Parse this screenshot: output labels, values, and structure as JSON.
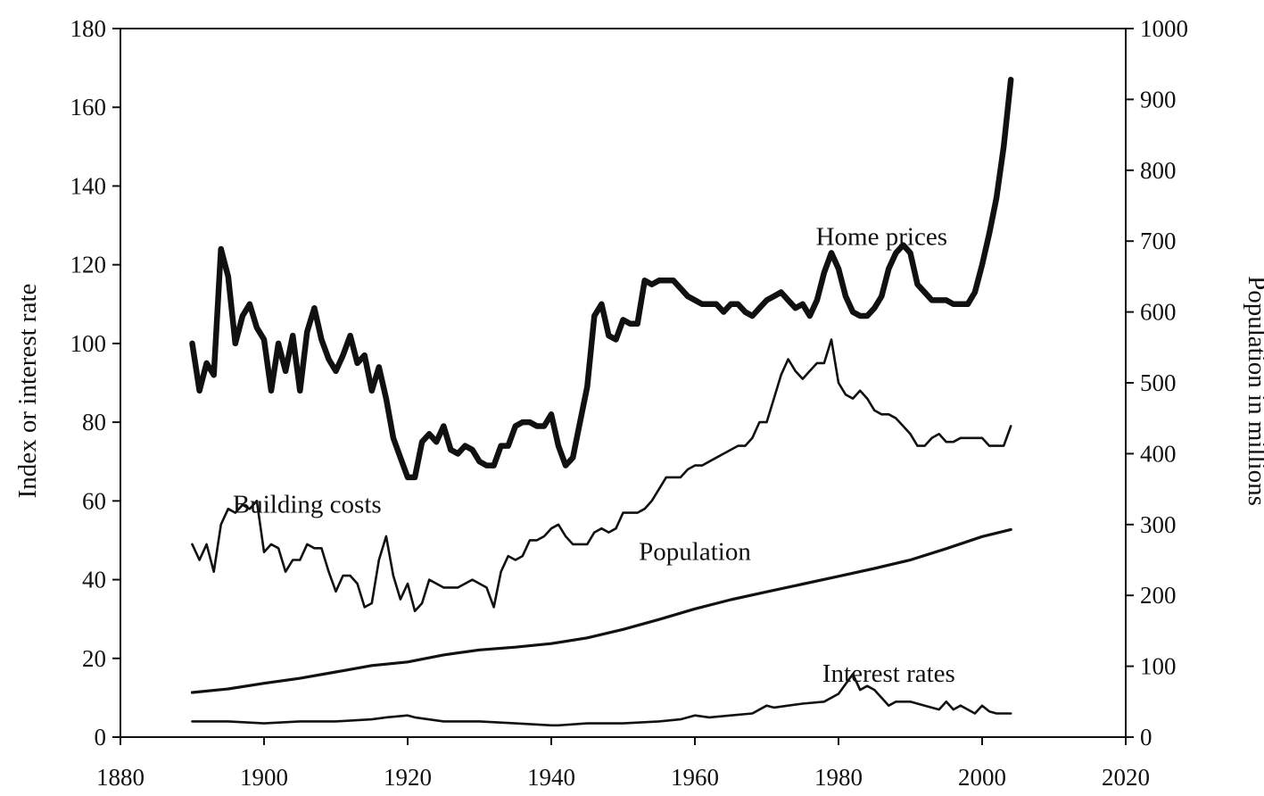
{
  "chart_data": {
    "type": "line",
    "title": "",
    "xlabel": "",
    "ylabel": "Index or interest rate",
    "y2label": "Population in millions",
    "xlim": [
      1880,
      2020
    ],
    "ylim": [
      0,
      180
    ],
    "y2lim": [
      0,
      1000
    ],
    "x_ticks": [
      1880,
      1900,
      1920,
      1940,
      1960,
      1980,
      2000,
      2020
    ],
    "y_ticks": [
      0,
      20,
      40,
      60,
      80,
      100,
      120,
      140,
      160,
      180
    ],
    "y2_ticks": [
      0,
      100,
      200,
      300,
      400,
      500,
      600,
      700,
      800,
      900,
      1000
    ],
    "grid": false,
    "legend": "none",
    "annotations": [
      {
        "text": "Home prices",
        "x": 1986,
        "y": 125
      },
      {
        "text": "Building costs",
        "x": 1906,
        "y": 57
      },
      {
        "text": "Population",
        "x": 1960,
        "y": 45
      },
      {
        "text": "Interest rates",
        "x": 1987,
        "y": 14
      }
    ],
    "series": [
      {
        "name": "Home prices",
        "axis": "left",
        "x": [
          1890,
          1891,
          1892,
          1893,
          1894,
          1895,
          1896,
          1897,
          1898,
          1899,
          1900,
          1901,
          1902,
          1903,
          1904,
          1905,
          1906,
          1907,
          1908,
          1909,
          1910,
          1911,
          1912,
          1913,
          1914,
          1915,
          1916,
          1917,
          1918,
          1919,
          1920,
          1921,
          1922,
          1923,
          1924,
          1925,
          1926,
          1927,
          1928,
          1929,
          1930,
          1931,
          1932,
          1933,
          1934,
          1935,
          1936,
          1937,
          1938,
          1939,
          1940,
          1941,
          1942,
          1943,
          1944,
          1945,
          1946,
          1947,
          1948,
          1949,
          1950,
          1951,
          1952,
          1953,
          1954,
          1955,
          1956,
          1957,
          1958,
          1959,
          1960,
          1961,
          1962,
          1963,
          1964,
          1965,
          1966,
          1967,
          1968,
          1969,
          1970,
          1971,
          1972,
          1973,
          1974,
          1975,
          1976,
          1977,
          1978,
          1979,
          1980,
          1981,
          1982,
          1983,
          1984,
          1985,
          1986,
          1987,
          1988,
          1989,
          1990,
          1991,
          1992,
          1993,
          1994,
          1995,
          1996,
          1997,
          1998,
          1999,
          2000,
          2001,
          2002,
          2003,
          2004
        ],
        "values": [
          100,
          88,
          95,
          92,
          124,
          117,
          100,
          107,
          110,
          104,
          101,
          88,
          100,
          93,
          102,
          88,
          103,
          109,
          101,
          96,
          93,
          97,
          102,
          95,
          97,
          88,
          94,
          86,
          76,
          71,
          66,
          66,
          75,
          77,
          75,
          79,
          73,
          72,
          74,
          73,
          70,
          69,
          69,
          74,
          74,
          79,
          80,
          80,
          79,
          79,
          82,
          74,
          69,
          71,
          80,
          89,
          107,
          110,
          102,
          101,
          106,
          105,
          105,
          116,
          115,
          116,
          116,
          116,
          114,
          112,
          111,
          110,
          110,
          110,
          108,
          110,
          110,
          108,
          107,
          109,
          111,
          112,
          113,
          111,
          109,
          110,
          107,
          111,
          118,
          123,
          119,
          112,
          108,
          107,
          107,
          109,
          112,
          119,
          123,
          125,
          123,
          115,
          113,
          111,
          111,
          111,
          110,
          110,
          110,
          113,
          120,
          128,
          137,
          150,
          167
        ]
      },
      {
        "name": "Building costs",
        "axis": "left",
        "x": [
          1890,
          1891,
          1892,
          1893,
          1894,
          1895,
          1896,
          1897,
          1898,
          1899,
          1900,
          1901,
          1902,
          1903,
          1904,
          1905,
          1906,
          1907,
          1908,
          1909,
          1910,
          1911,
          1912,
          1913,
          1914,
          1915,
          1916,
          1917,
          1918,
          1919,
          1920,
          1921,
          1922,
          1923,
          1924,
          1925,
          1926,
          1927,
          1928,
          1929,
          1930,
          1931,
          1932,
          1933,
          1934,
          1935,
          1936,
          1937,
          1938,
          1939,
          1940,
          1941,
          1942,
          1943,
          1944,
          1945,
          1946,
          1947,
          1948,
          1949,
          1950,
          1951,
          1952,
          1953,
          1954,
          1955,
          1956,
          1957,
          1958,
          1959,
          1960,
          1961,
          1962,
          1963,
          1964,
          1965,
          1966,
          1967,
          1968,
          1969,
          1970,
          1971,
          1972,
          1973,
          1974,
          1975,
          1976,
          1977,
          1978,
          1979,
          1980,
          1981,
          1982,
          1983,
          1984,
          1985,
          1986,
          1987,
          1988,
          1989,
          1990,
          1991,
          1992,
          1993,
          1994,
          1995,
          1996,
          1997,
          1998,
          1999,
          2000,
          2001,
          2002,
          2003,
          2004
        ],
        "values": [
          49,
          45,
          49,
          42,
          54,
          58,
          57,
          59,
          58,
          60,
          47,
          49,
          48,
          42,
          45,
          45,
          49,
          48,
          48,
          42,
          37,
          41,
          41,
          39,
          33,
          34,
          45,
          51,
          41,
          35,
          39,
          32,
          34,
          40,
          39,
          38,
          38,
          38,
          39,
          40,
          39,
          38,
          33,
          42,
          46,
          45,
          46,
          50,
          50,
          51,
          53,
          54,
          51,
          49,
          49,
          49,
          52,
          53,
          52,
          53,
          57,
          57,
          57,
          58,
          60,
          63,
          66,
          66,
          66,
          68,
          69,
          69,
          70,
          71,
          72,
          73,
          74,
          74,
          76,
          80,
          80,
          86,
          92,
          96,
          93,
          91,
          93,
          95,
          95,
          101,
          90,
          87,
          86,
          88,
          86,
          83,
          82,
          82,
          81,
          79,
          77,
          74,
          74,
          76,
          77,
          75,
          75,
          76,
          76,
          76,
          76,
          74,
          74,
          74,
          79
        ]
      },
      {
        "name": "Population",
        "axis": "right",
        "x": [
          1890,
          1895,
          1900,
          1905,
          1910,
          1915,
          1920,
          1925,
          1930,
          1935,
          1940,
          1945,
          1950,
          1955,
          1960,
          1965,
          1970,
          1975,
          1980,
          1985,
          1990,
          1995,
          2000,
          2004
        ],
        "values": [
          63,
          68,
          76,
          83,
          92,
          101,
          106,
          116,
          123,
          127,
          132,
          140,
          152,
          166,
          181,
          194,
          205,
          216,
          227,
          238,
          250,
          266,
          283,
          293
        ]
      },
      {
        "name": "Interest rates",
        "axis": "left",
        "x": [
          1890,
          1895,
          1900,
          1905,
          1910,
          1915,
          1917,
          1920,
          1921,
          1925,
          1930,
          1935,
          1940,
          1941,
          1945,
          1950,
          1955,
          1958,
          1960,
          1962,
          1965,
          1968,
          1970,
          1971,
          1973,
          1975,
          1978,
          1980,
          1982,
          1983,
          1984,
          1985,
          1987,
          1988,
          1990,
          1992,
          1994,
          1995,
          1996,
          1997,
          1998,
          1999,
          2000,
          2001,
          2002,
          2003,
          2004
        ],
        "values": [
          4,
          4,
          3.5,
          4,
          4,
          4.5,
          5,
          5.5,
          5,
          4,
          4,
          3.5,
          3,
          3,
          3.5,
          3.5,
          4,
          4.5,
          5.5,
          5,
          5.5,
          6,
          8,
          7.5,
          8,
          8.5,
          9,
          11,
          16,
          12,
          13,
          12,
          8,
          9,
          9,
          8,
          7,
          9,
          7,
          8,
          7,
          6,
          8,
          6.5,
          6,
          6,
          6
        ]
      }
    ]
  }
}
